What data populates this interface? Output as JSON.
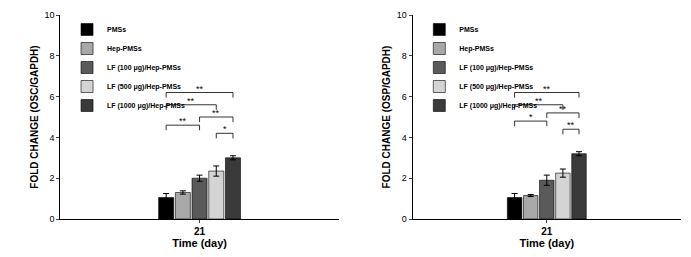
{
  "chart_data": [
    {
      "type": "bar",
      "categories": [
        "21"
      ],
      "xlabel": "Time (day)",
      "ylabel": "FOLD CHANGE (OSC/GAPDH)",
      "ylim": [
        0,
        10
      ],
      "yticks": [
        0,
        2,
        4,
        6,
        8,
        10
      ],
      "legend": "upper left",
      "series": [
        {
          "name": "PMSs",
          "color": "#000000",
          "values": [
            1.05
          ],
          "errors": [
            0.2
          ]
        },
        {
          "name": "Hep-PMSs",
          "color": "#a8a8a8",
          "values": [
            1.3
          ],
          "errors": [
            0.08
          ]
        },
        {
          "name": "LF (100 μg)/Hep-PMSs",
          "color": "#5a5a5a",
          "values": [
            2.0
          ],
          "errors": [
            0.15
          ]
        },
        {
          "name": "LF (500 μg)/Hep-PMSs",
          "color": "#d4d4d4",
          "values": [
            2.35
          ],
          "errors": [
            0.25
          ]
        },
        {
          "name": "LF (1000 μg)/Hep-PMSs",
          "color": "#3a3a3a",
          "values": [
            3.0
          ],
          "errors": [
            0.1
          ]
        }
      ],
      "significance": [
        {
          "from": 0,
          "to": 4,
          "y": 6.2,
          "label": "**"
        },
        {
          "from": 0,
          "to": 3,
          "y": 5.6,
          "label": "**"
        },
        {
          "from": 0,
          "to": 2,
          "y": 4.6,
          "label": "**"
        },
        {
          "from": 2,
          "to": 4,
          "y": 5.0,
          "label": "**"
        },
        {
          "from": 3,
          "to": 4,
          "y": 4.2,
          "label": "*"
        }
      ]
    },
    {
      "type": "bar",
      "categories": [
        "21"
      ],
      "xlabel": "Time (day)",
      "ylabel": "FOLD CHANGE (OSP/GAPDH)",
      "ylim": [
        0,
        10
      ],
      "yticks": [
        0,
        2,
        4,
        6,
        8,
        10
      ],
      "legend": "upper left",
      "series": [
        {
          "name": "PMSs",
          "color": "#000000",
          "values": [
            1.05
          ],
          "errors": [
            0.2
          ]
        },
        {
          "name": "Hep-PMSs",
          "color": "#a8a8a8",
          "values": [
            1.15
          ],
          "errors": [
            0.05
          ]
        },
        {
          "name": "LF (100 μg)/Hep-PMSs",
          "color": "#5a5a5a",
          "values": [
            1.9
          ],
          "errors": [
            0.25
          ]
        },
        {
          "name": "LF (500 μg)/Hep-PMSs",
          "color": "#d4d4d4",
          "values": [
            2.25
          ],
          "errors": [
            0.2
          ]
        },
        {
          "name": "LF (1000 μg)/Hep-PMSs",
          "color": "#3a3a3a",
          "values": [
            3.2
          ],
          "errors": [
            0.1
          ]
        }
      ],
      "significance": [
        {
          "from": 0,
          "to": 4,
          "y": 6.2,
          "label": "**"
        },
        {
          "from": 0,
          "to": 3,
          "y": 5.6,
          "label": "**"
        },
        {
          "from": 0,
          "to": 2,
          "y": 4.8,
          "label": "*"
        },
        {
          "from": 2,
          "to": 4,
          "y": 5.2,
          "label": "**"
        },
        {
          "from": 3,
          "to": 4,
          "y": 4.4,
          "label": "**"
        }
      ]
    }
  ]
}
